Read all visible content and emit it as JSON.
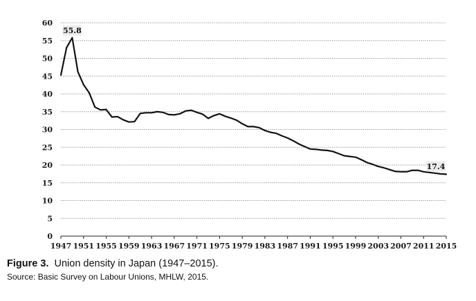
{
  "chart_data": {
    "type": "line",
    "title": "",
    "xlabel": "",
    "ylabel": "",
    "ylim": [
      0,
      60
    ],
    "yticks": [
      "0",
      "5",
      "10",
      "15",
      "20",
      "25",
      "30",
      "35",
      "40",
      "45",
      "50",
      "55",
      "60"
    ],
    "xticks": [
      "1947",
      "1951",
      "1955",
      "1959",
      "1963",
      "1967",
      "1971",
      "1975",
      "1979",
      "1983",
      "1987",
      "1991",
      "1995",
      "1999",
      "2003",
      "2007",
      "2011",
      "2015"
    ],
    "grid": true,
    "legend": "none",
    "series": [
      {
        "name": "",
        "color": "#111111",
        "x": [
          1947,
          1948,
          1949,
          1950,
          1951,
          1952,
          1953,
          1954,
          1955,
          1956,
          1957,
          1958,
          1959,
          1960,
          1961,
          1962,
          1963,
          1964,
          1965,
          1966,
          1967,
          1968,
          1969,
          1970,
          1971,
          1972,
          1973,
          1974,
          1975,
          1976,
          1977,
          1978,
          1979,
          1980,
          1981,
          1982,
          1983,
          1984,
          1985,
          1986,
          1987,
          1988,
          1989,
          1990,
          1991,
          1992,
          1993,
          1994,
          1995,
          1996,
          1997,
          1998,
          1999,
          2000,
          2001,
          2002,
          2003,
          2004,
          2005,
          2006,
          2007,
          2008,
          2009,
          2010,
          2011,
          2012,
          2013,
          2014,
          2015
        ],
        "values": [
          45.3,
          53.0,
          55.8,
          46.2,
          42.6,
          40.3,
          36.3,
          35.5,
          35.6,
          33.5,
          33.6,
          32.7,
          32.1,
          32.2,
          34.5,
          34.7,
          34.7,
          35.0,
          34.8,
          34.2,
          34.1,
          34.4,
          35.2,
          35.4,
          34.8,
          34.3,
          33.1,
          33.9,
          34.4,
          33.7,
          33.2,
          32.6,
          31.6,
          30.8,
          30.8,
          30.5,
          29.7,
          29.2,
          28.9,
          28.2,
          27.6,
          26.8,
          25.9,
          25.2,
          24.5,
          24.4,
          24.2,
          24.1,
          23.8,
          23.2,
          22.6,
          22.4,
          22.2,
          21.5,
          20.7,
          20.2,
          19.6,
          19.2,
          18.7,
          18.2,
          18.1,
          18.1,
          18.5,
          18.5,
          18.1,
          17.9,
          17.7,
          17.5,
          17.4
        ]
      }
    ],
    "annotations": [
      {
        "text": "55.8",
        "x": 1949,
        "y": 55.8
      },
      {
        "text": "17.4",
        "x": 2015,
        "y": 17.4
      }
    ]
  },
  "caption": {
    "figure_label": "Figure 3.",
    "title": "Union density in Japan (1947–2015).",
    "source": "Source: Basic Survey on Labour Unions, MHLW, 2015."
  }
}
